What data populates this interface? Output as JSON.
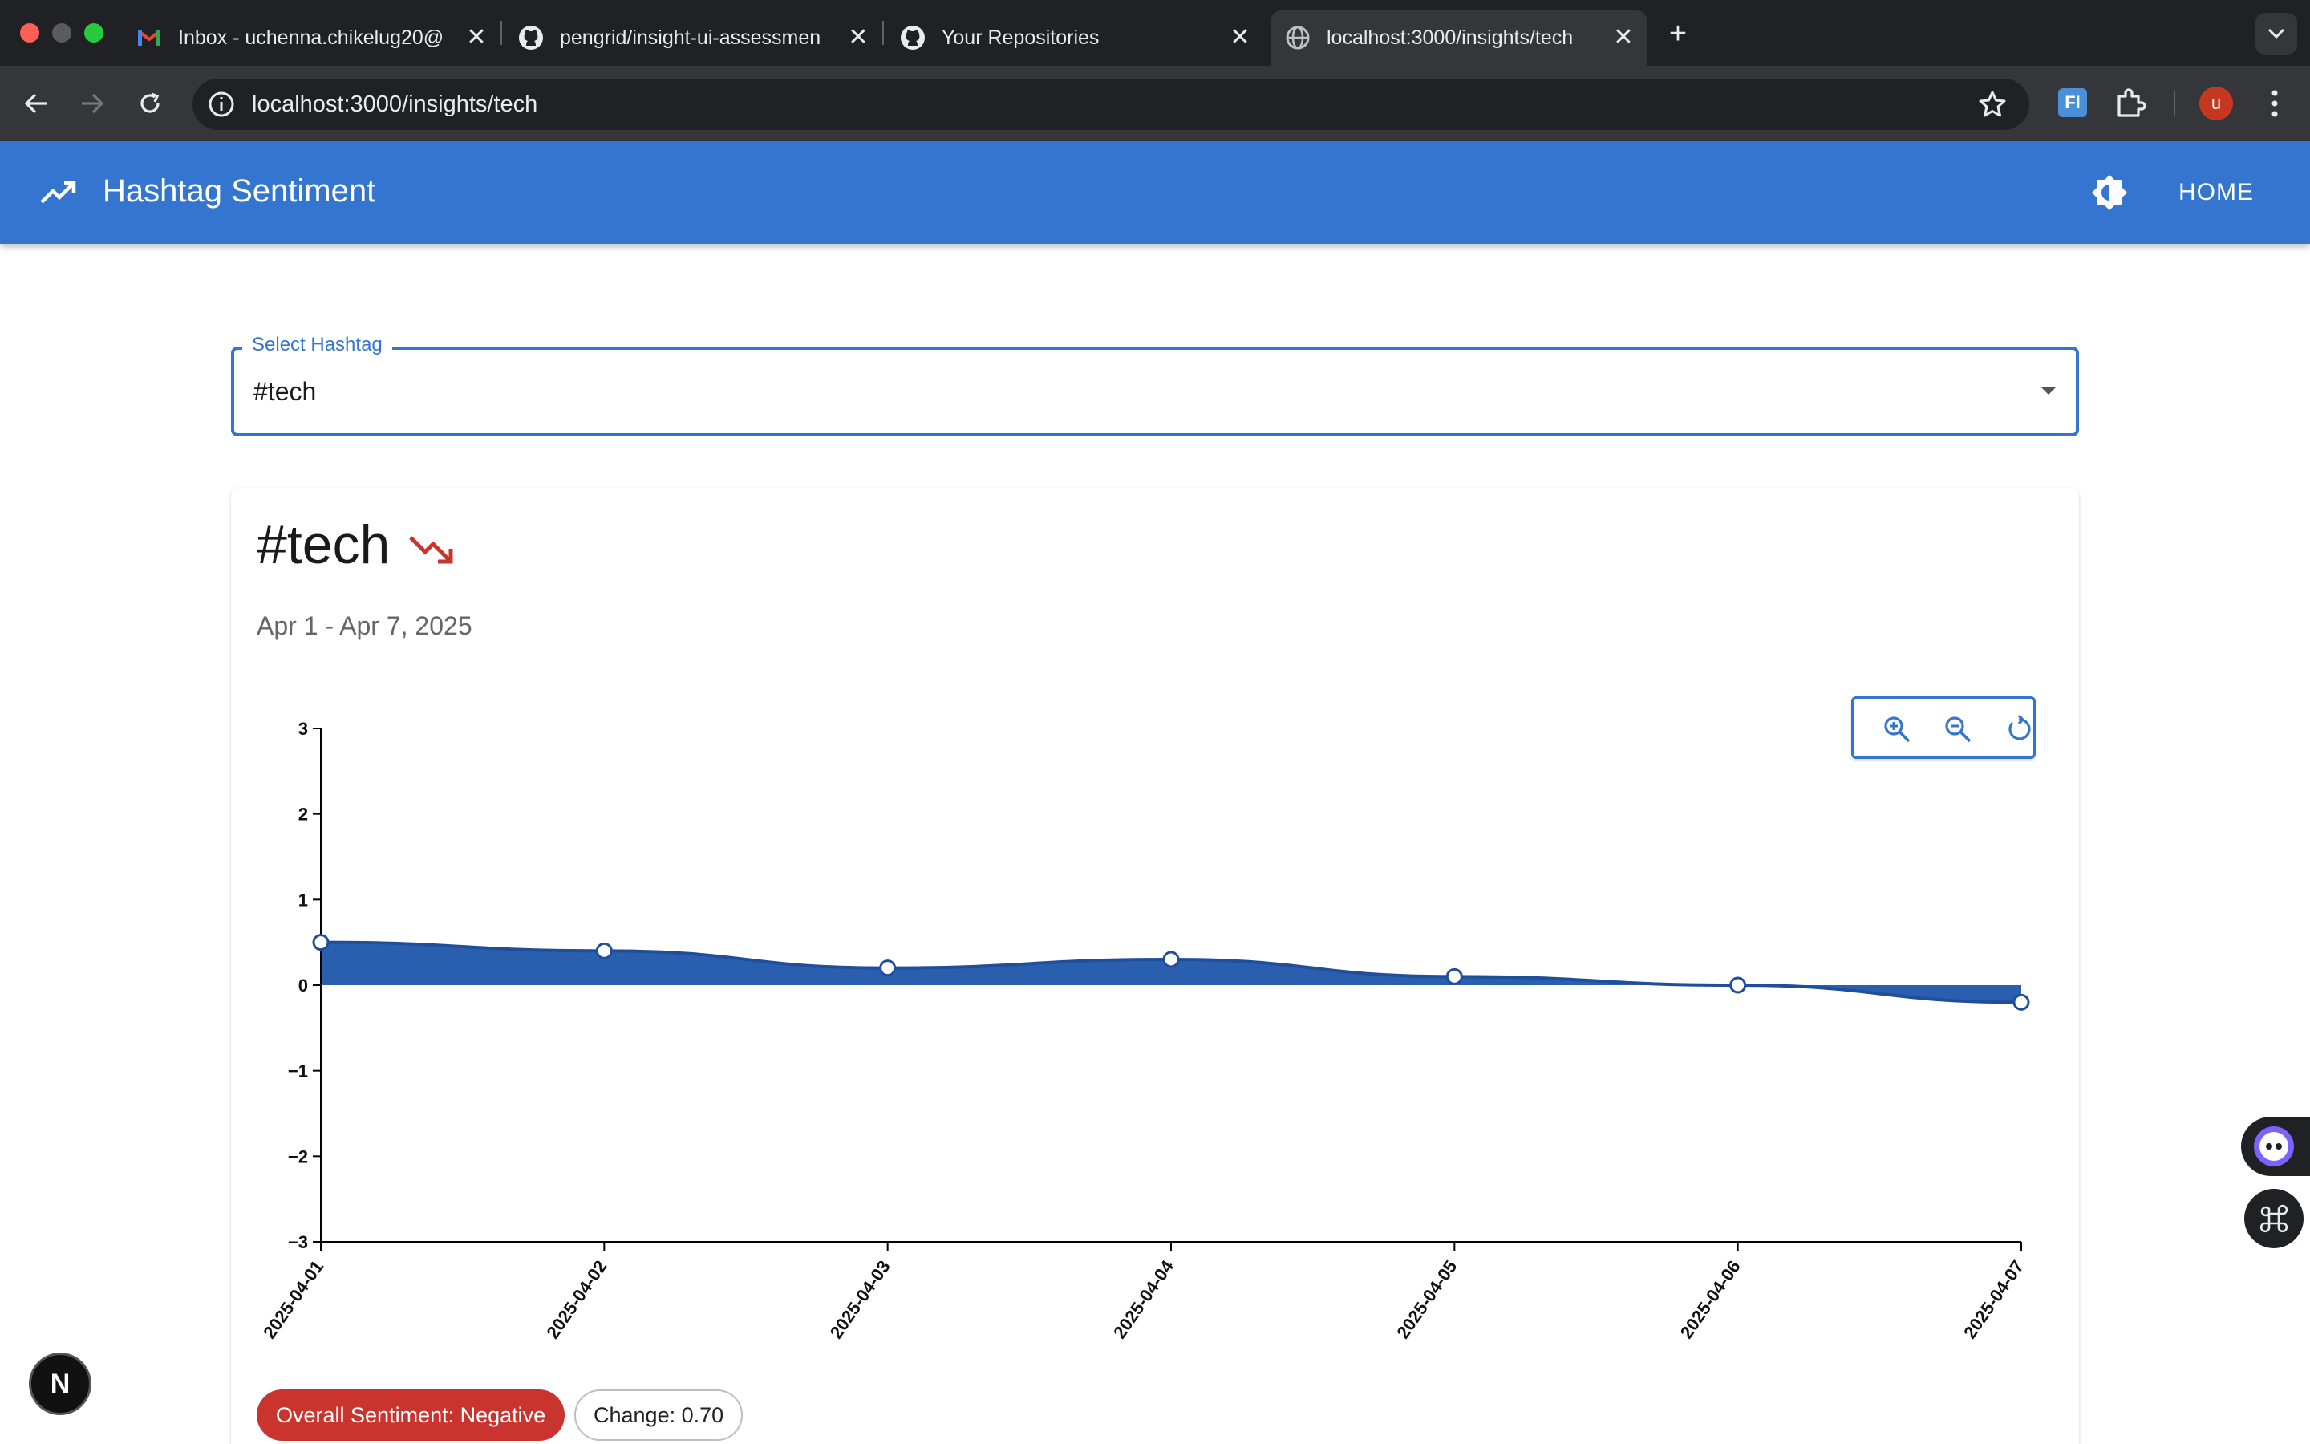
{
  "browser": {
    "tabs": [
      {
        "title": "Inbox - uchenna.chikelug20@",
        "icon": "gmail-icon"
      },
      {
        "title": "pengrid/insight-ui-assessmen",
        "icon": "github-icon"
      },
      {
        "title": "Your Repositories",
        "icon": "github-icon"
      },
      {
        "title": "localhost:3000/insights/tech",
        "icon": "globe-icon"
      }
    ],
    "close_glyph": "✕",
    "new_tab_glyph": "+",
    "url": "localhost:3000/insights/tech",
    "extension_label": "FI",
    "profile_initial": "u"
  },
  "appbar": {
    "title": "Hashtag Sentiment",
    "home_label": "HOME"
  },
  "select": {
    "label": "Select Hashtag",
    "value": "#tech"
  },
  "card": {
    "title": "#tech",
    "date_range": "Apr 1 - Apr 7, 2025",
    "trend": "down",
    "trend_color": "#c9342e",
    "chips": {
      "sentiment": "Overall Sentiment: Negative",
      "change": "Change: 0.70"
    }
  },
  "chart_data": {
    "type": "area",
    "x": [
      "2025-04-01",
      "2025-04-02",
      "2025-04-03",
      "2025-04-04",
      "2025-04-05",
      "2025-04-06",
      "2025-04-07"
    ],
    "series": [
      {
        "values": [
          0.5,
          0.4,
          0.2,
          0.3,
          0.1,
          0.0,
          -0.2
        ],
        "color": "#2a5fb0"
      }
    ],
    "yticks": [
      "3",
      "2",
      "1",
      "0",
      "−1",
      "−2",
      "−3"
    ],
    "ylim": [
      -3,
      3
    ],
    "grid": false
  },
  "colors": {
    "primary": "#3475cf",
    "negative": "#c9342e",
    "area_fill": "#2a5fb0"
  },
  "floating": {
    "next_logo": "N"
  }
}
